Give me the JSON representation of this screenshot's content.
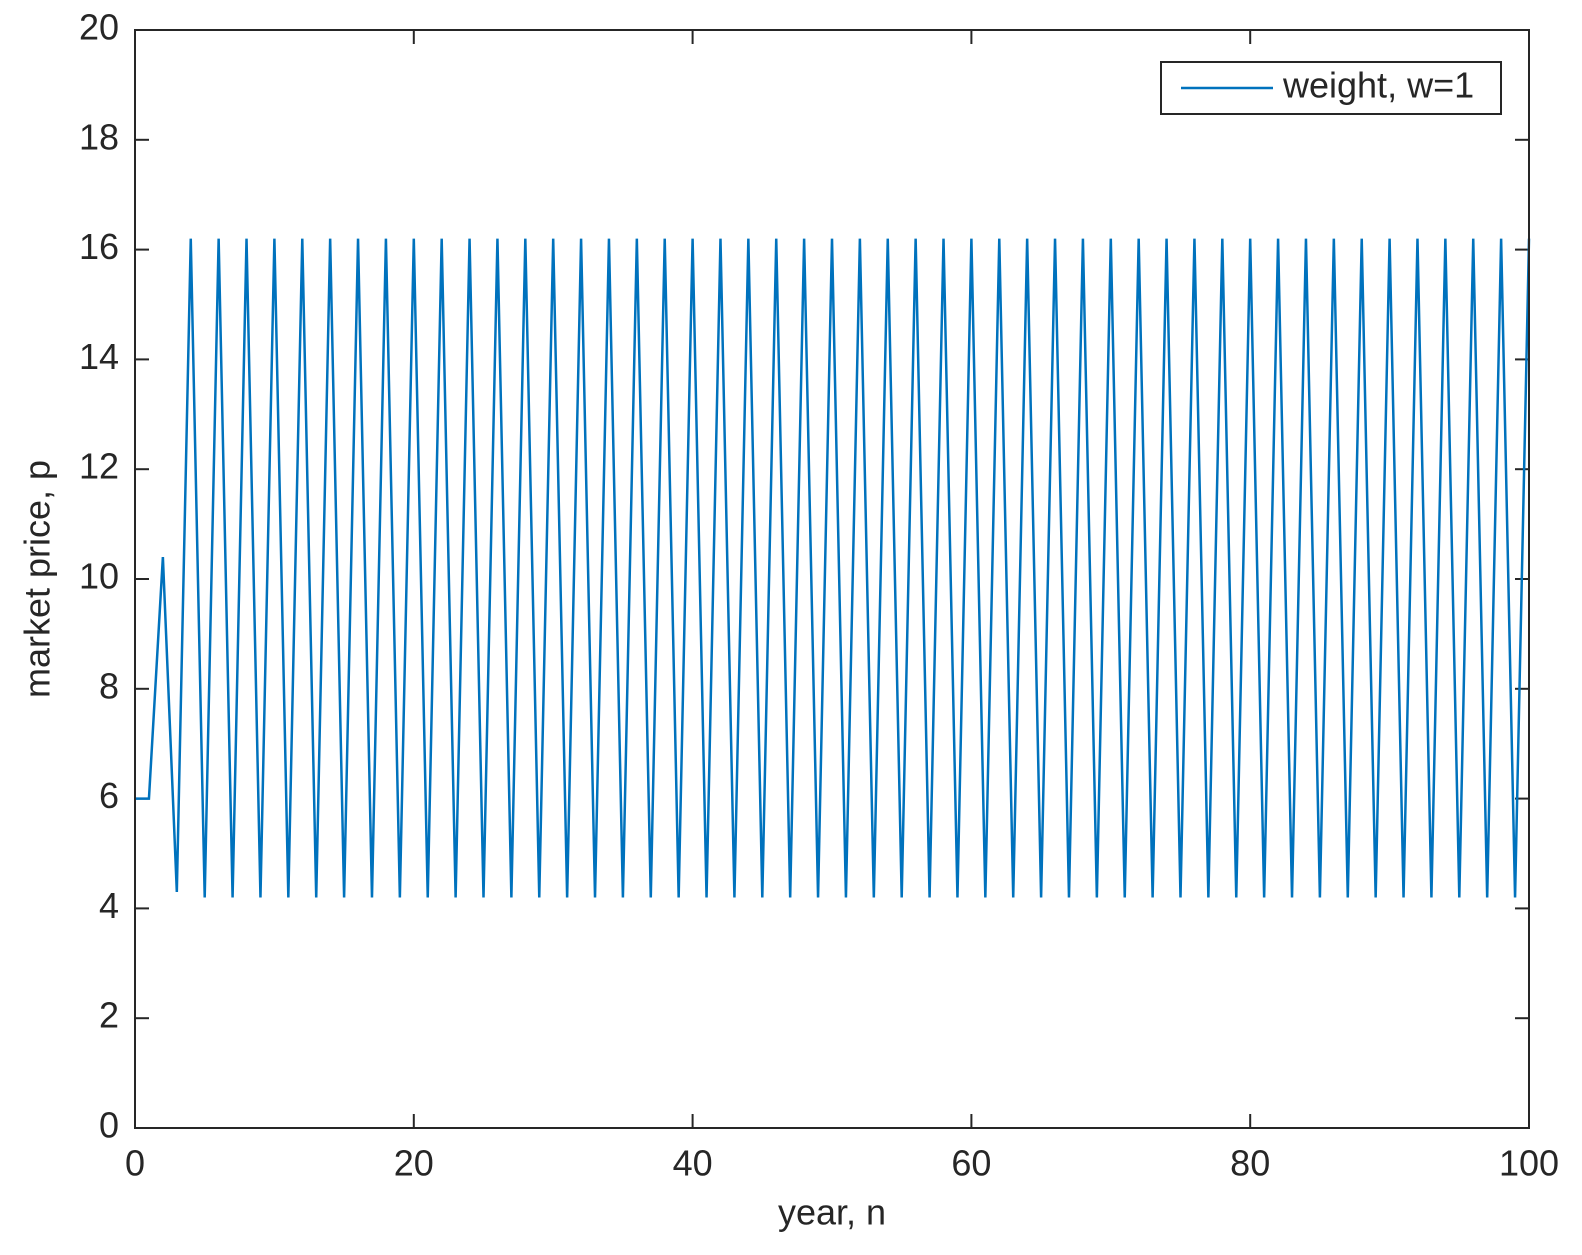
{
  "chart_data": {
    "type": "line",
    "xlabel": "year, n",
    "ylabel": "market price, p",
    "x": [
      0,
      1,
      2,
      3,
      4,
      5,
      6,
      7,
      8,
      9,
      10,
      11,
      12,
      13,
      14,
      15,
      16,
      17,
      18,
      19,
      20,
      21,
      22,
      23,
      24,
      25,
      26,
      27,
      28,
      29,
      30,
      31,
      32,
      33,
      34,
      35,
      36,
      37,
      38,
      39,
      40,
      41,
      42,
      43,
      44,
      45,
      46,
      47,
      48,
      49,
      50,
      51,
      52,
      53,
      54,
      55,
      56,
      57,
      58,
      59,
      60,
      61,
      62,
      63,
      64,
      65,
      66,
      67,
      68,
      69,
      70,
      71,
      72,
      73,
      74,
      75,
      76,
      77,
      78,
      79,
      80,
      81,
      82,
      83,
      84,
      85,
      86,
      87,
      88,
      89,
      90,
      91,
      92,
      93,
      94,
      95,
      96,
      97,
      98,
      99,
      100
    ],
    "series": [
      {
        "name": "weight, w=1",
        "color": "#0072bd",
        "values": [
          6,
          6,
          10.4,
          4.3,
          16.2,
          4.2,
          16.2,
          4.2,
          16.2,
          4.2,
          16.2,
          4.2,
          16.2,
          4.2,
          16.2,
          4.2,
          16.2,
          4.2,
          16.2,
          4.2,
          16.2,
          4.2,
          16.2,
          4.2,
          16.2,
          4.2,
          16.2,
          4.2,
          16.2,
          4.2,
          16.2,
          4.2,
          16.2,
          4.2,
          16.2,
          4.2,
          16.2,
          4.2,
          16.2,
          4.2,
          16.2,
          4.2,
          16.2,
          4.2,
          16.2,
          4.2,
          16.2,
          4.2,
          16.2,
          4.2,
          16.2,
          4.2,
          16.2,
          4.2,
          16.2,
          4.2,
          16.2,
          4.2,
          16.2,
          4.2,
          16.2,
          4.2,
          16.2,
          4.2,
          16.2,
          4.2,
          16.2,
          4.2,
          16.2,
          4.2,
          16.2,
          4.2,
          16.2,
          4.2,
          16.2,
          4.2,
          16.2,
          4.2,
          16.2,
          4.2,
          16.2,
          4.2,
          16.2,
          4.2,
          16.2,
          4.2,
          16.2,
          4.2,
          16.2,
          4.2,
          16.2,
          4.2,
          16.2,
          4.2,
          16.2,
          4.2,
          16.2,
          4.2,
          16.2,
          4.2,
          16.2
        ]
      }
    ],
    "xlim": [
      0,
      100
    ],
    "xticks": [
      0,
      20,
      40,
      60,
      80,
      100
    ],
    "ylim": [
      0,
      20
    ],
    "yticks": [
      0,
      2,
      4,
      6,
      8,
      10,
      12,
      14,
      16,
      18,
      20
    ],
    "legend": "upper right",
    "grid": false
  }
}
